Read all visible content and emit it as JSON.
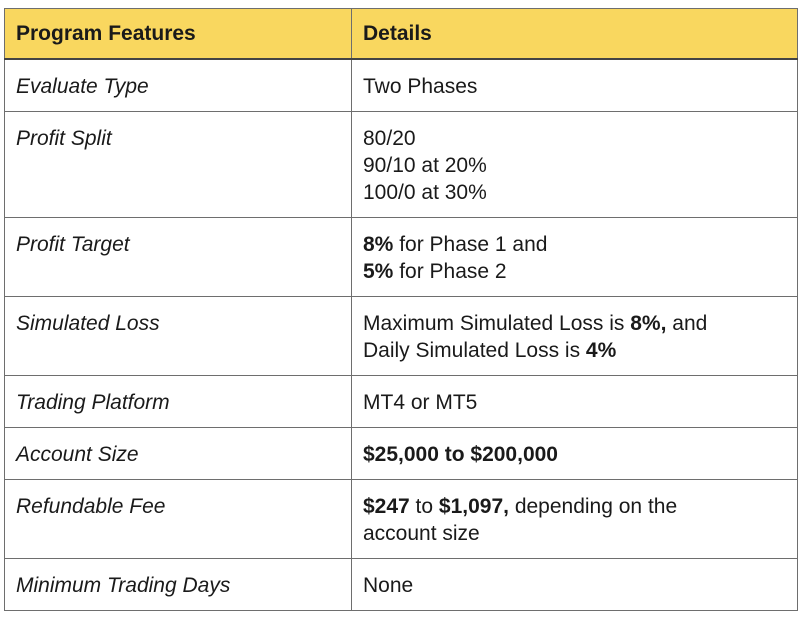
{
  "header": {
    "col1": "Program Features",
    "col2": "Details"
  },
  "rows": [
    {
      "feature": "Evaluate Type",
      "lines": [
        [
          {
            "t": "Two Phases",
            "b": false
          }
        ]
      ]
    },
    {
      "feature": "Profit Split",
      "lines": [
        [
          {
            "t": "80/20",
            "b": false
          }
        ],
        [
          {
            "t": "90/10 at 20%",
            "b": false
          }
        ],
        [
          {
            "t": "100/0 at 30%",
            "b": false
          }
        ]
      ]
    },
    {
      "feature": "Profit Target",
      "lines": [
        [
          {
            "t": "8%",
            "b": true
          },
          {
            "t": " for Phase 1 and",
            "b": false
          }
        ],
        [
          {
            "t": "5%",
            "b": true
          },
          {
            "t": " for Phase 2",
            "b": false
          }
        ]
      ]
    },
    {
      "feature": "Simulated Loss",
      "lines": [
        [
          {
            "t": "Maximum Simulated Loss is ",
            "b": false
          },
          {
            "t": "8%,",
            "b": true
          },
          {
            "t": " and",
            "b": false
          }
        ],
        [
          {
            "t": "Daily Simulated Loss is ",
            "b": false
          },
          {
            "t": "4%",
            "b": true
          }
        ]
      ]
    },
    {
      "feature": "Trading Platform",
      "lines": [
        [
          {
            "t": "MT4 or MT5",
            "b": false
          }
        ]
      ]
    },
    {
      "feature": "Account Size",
      "lines": [
        [
          {
            "t": "$25,000 to $200,000",
            "b": true
          }
        ]
      ]
    },
    {
      "feature": "Refundable Fee",
      "lines": [
        [
          {
            "t": "$247",
            "b": true
          },
          {
            "t": " to ",
            "b": false
          },
          {
            "t": "$1,097,",
            "b": true
          },
          {
            "t": " depending on the",
            "b": false
          }
        ],
        [
          {
            "t": "account size",
            "b": false
          }
        ]
      ]
    },
    {
      "feature": "Minimum Trading Days",
      "lines": [
        [
          {
            "t": "None",
            "b": false
          }
        ]
      ]
    }
  ]
}
